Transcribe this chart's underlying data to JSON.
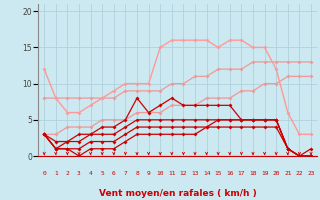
{
  "x": [
    0,
    1,
    2,
    3,
    4,
    5,
    6,
    7,
    8,
    9,
    10,
    11,
    12,
    13,
    14,
    15,
    16,
    17,
    18,
    19,
    20,
    21,
    22,
    23
  ],
  "background_color": "#cce8f0",
  "grid_color": "#aaccd8",
  "xlabel": "Vent moyen/en rafales ( km/h )",
  "xlabel_color": "#cc0000",
  "xlabel_fontsize": 6.5,
  "ylim": [
    0,
    21
  ],
  "yticks": [
    0,
    5,
    10,
    15,
    20
  ],
  "line_top": [
    12,
    8,
    6,
    6,
    7,
    8,
    9,
    10,
    10,
    10,
    15,
    16,
    16,
    16,
    16,
    15,
    16,
    16,
    15,
    15,
    12,
    6,
    3,
    3
  ],
  "line_diag_hi": [
    8,
    8,
    8,
    8,
    8,
    8,
    8,
    9,
    9,
    9,
    9,
    10,
    10,
    11,
    11,
    12,
    12,
    12,
    13,
    13,
    13,
    13,
    13,
    13
  ],
  "line_diag_lo": [
    3,
    3,
    4,
    4,
    4,
    5,
    5,
    5,
    6,
    6,
    6,
    7,
    7,
    7,
    8,
    8,
    8,
    9,
    9,
    10,
    10,
    11,
    11,
    11
  ],
  "line_dark4": [
    3,
    2,
    2,
    3,
    3,
    4,
    4,
    5,
    8,
    6,
    7,
    8,
    7,
    7,
    7,
    7,
    7,
    5,
    5,
    5,
    5,
    1,
    0,
    1
  ],
  "line_dark3": [
    3,
    1,
    2,
    2,
    3,
    3,
    3,
    4,
    5,
    5,
    5,
    5,
    5,
    5,
    5,
    5,
    5,
    5,
    5,
    5,
    5,
    1,
    0,
    0
  ],
  "line_dark2": [
    3,
    1,
    1,
    1,
    2,
    2,
    2,
    3,
    4,
    4,
    4,
    4,
    4,
    4,
    4,
    5,
    5,
    5,
    5,
    5,
    5,
    1,
    0,
    0
  ],
  "line_dark1": [
    3,
    1,
    1,
    0,
    1,
    1,
    1,
    2,
    3,
    3,
    3,
    3,
    3,
    3,
    4,
    4,
    4,
    4,
    4,
    4,
    4,
    1,
    0,
    0
  ],
  "color_top": "#ff9999",
  "color_diag": "#ee9999",
  "color_dark": "#cc0000"
}
